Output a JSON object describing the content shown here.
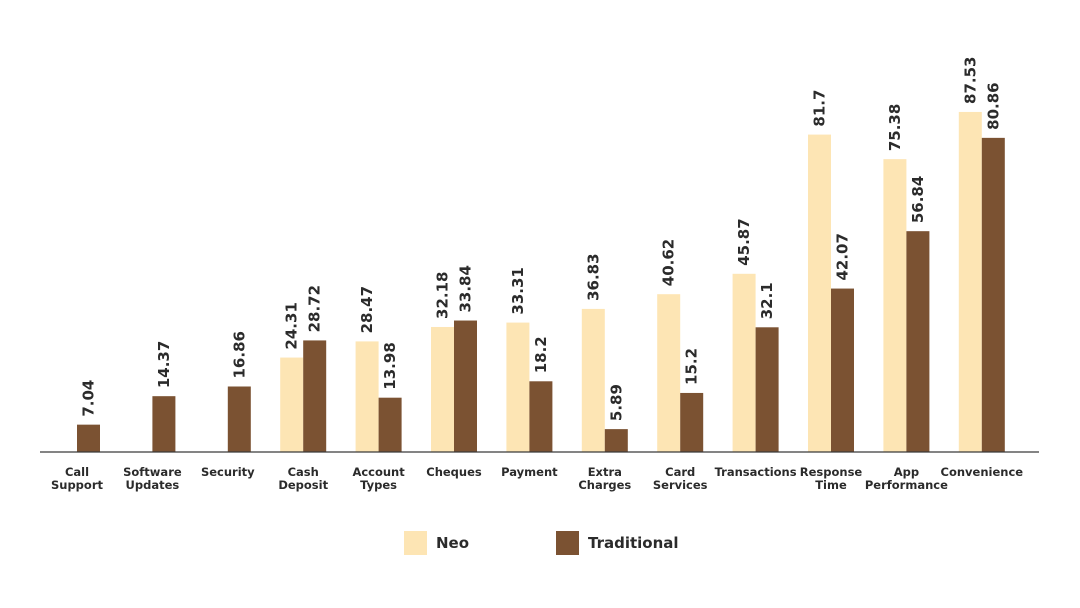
{
  "chart_data": {
    "type": "bar",
    "categories": [
      [
        "Call",
        "Support"
      ],
      [
        "Software",
        "Updates"
      ],
      [
        "Security"
      ],
      [
        "Cash",
        "Deposit"
      ],
      [
        "Account",
        "Types"
      ],
      [
        "Cheques"
      ],
      [
        "Payment"
      ],
      [
        "Extra",
        "Charges"
      ],
      [
        "Card",
        "Services"
      ],
      [
        "Transactions"
      ],
      [
        "Response",
        "Time"
      ],
      [
        "App",
        "Performance"
      ],
      [
        "Convenience"
      ]
    ],
    "series": [
      {
        "name": "Neo",
        "color": "#fde5b4",
        "values": [
          null,
          null,
          null,
          24.31,
          28.47,
          32.18,
          33.31,
          36.83,
          40.62,
          45.87,
          81.7,
          75.38,
          87.53
        ],
        "labels": [
          null,
          null,
          null,
          "24.31",
          "28.47",
          "32.18",
          "33.31",
          "36.83",
          "40.62",
          "45.87",
          "81.7",
          "75.38",
          "87.53"
        ]
      },
      {
        "name": "Traditional",
        "color": "#7b5232",
        "values": [
          7.04,
          14.37,
          16.86,
          28.72,
          13.98,
          33.84,
          18.2,
          5.89,
          15.2,
          32.1,
          42.07,
          56.84,
          80.86
        ],
        "labels": [
          "7.04",
          "14.37",
          "16.86",
          "28.72",
          "13.98",
          "33.84",
          "18.2",
          "5.89",
          "15.2",
          "32.1",
          "42.07",
          "56.84",
          "80.86"
        ]
      }
    ],
    "legend_position": "bottom-center",
    "grid": false
  }
}
